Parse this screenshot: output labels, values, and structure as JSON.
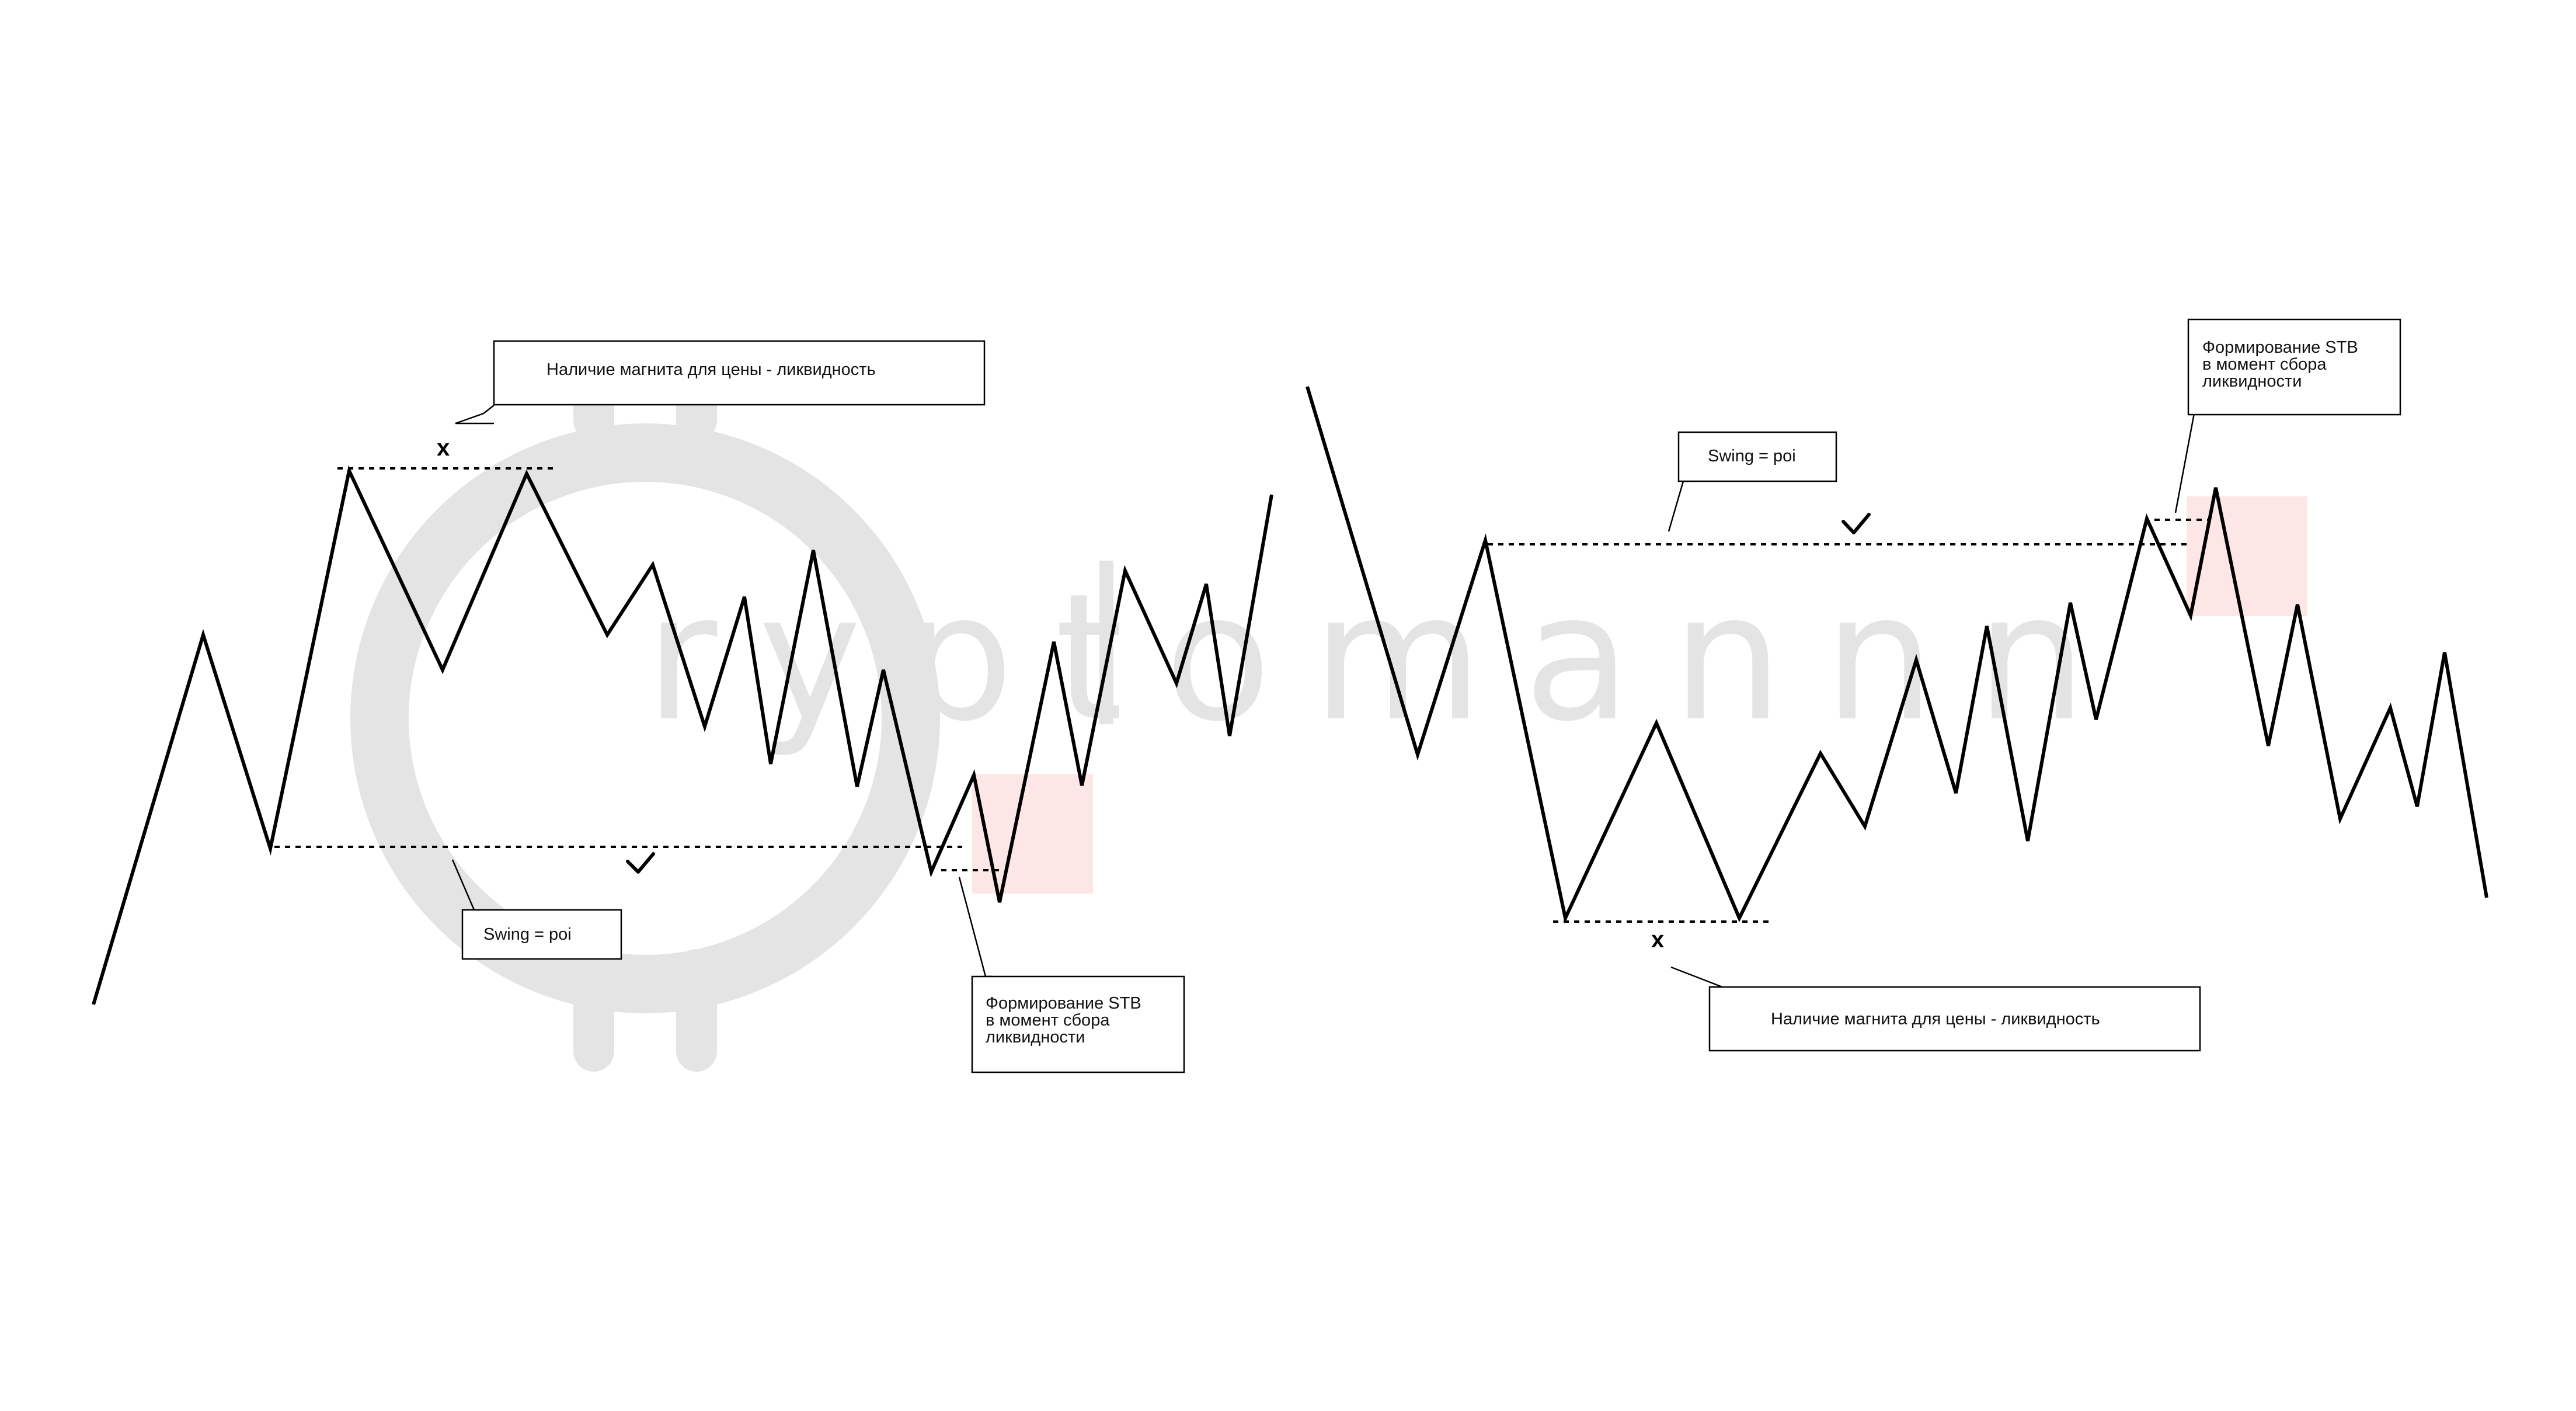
{
  "watermark": {
    "text": "cryptomannn",
    "visible_text": "ryptomannn",
    "icon": "bitcoin-icon",
    "color": "#e4e4e4"
  },
  "colors": {
    "line": "#000000",
    "zone": "#fde6e6"
  },
  "left_panel": {
    "liquidity_label": "Наличие магнита для цены - ликвидность",
    "swing_label": "Swing = poi",
    "stb_label_lines": [
      "Формирование STB",
      "в момент сбора",
      "ликвидности"
    ],
    "liquidity_mark": "x",
    "swing_mark": "check-icon"
  },
  "right_panel": {
    "liquidity_label": "Наличие магнита для цены - ликвидность",
    "swing_label": "Swing = poi",
    "stb_label_lines": [
      "Формирование STB",
      "в момент сбора",
      "ликвидности"
    ],
    "liquidity_mark": "x",
    "swing_mark": "check-icon"
  }
}
